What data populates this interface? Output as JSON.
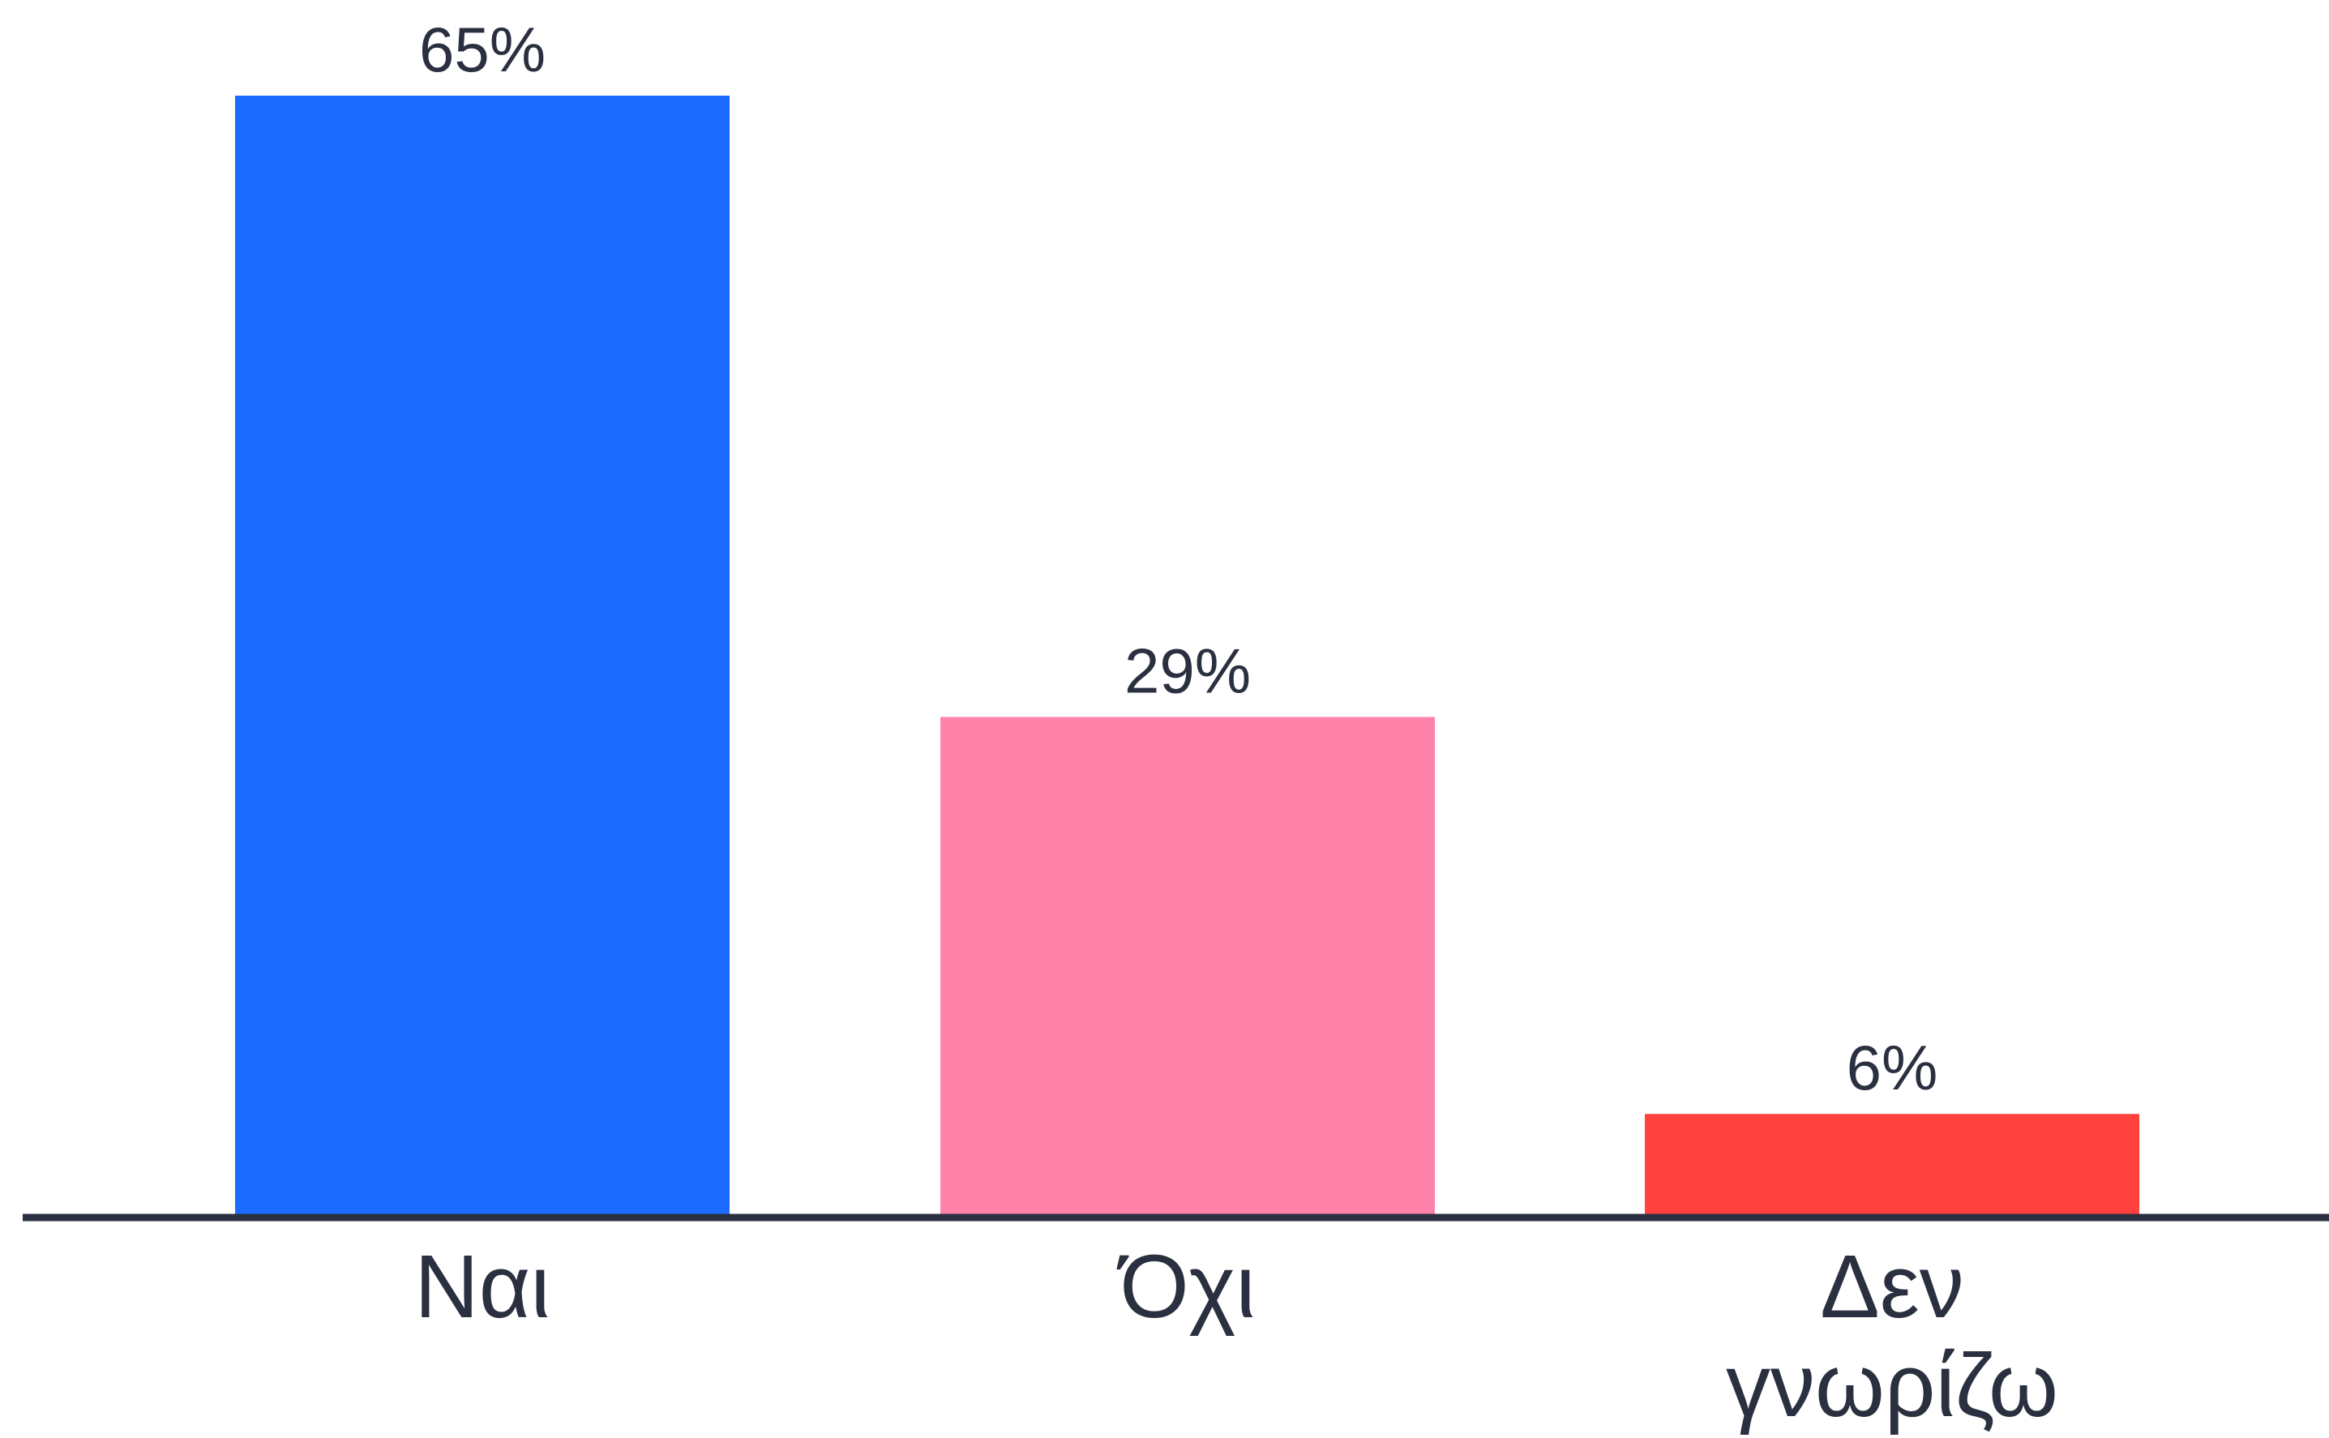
{
  "chart_data": {
    "type": "bar",
    "categories": [
      [
        "Ναι"
      ],
      [
        "Όχι"
      ],
      [
        "Δεν",
        "γνωρίζω"
      ]
    ],
    "values": [
      65,
      29,
      6
    ],
    "value_labels": [
      "65%",
      "29%",
      "6%"
    ],
    "colors": [
      "#1c6bff",
      "#ff82aa",
      "#ff423d"
    ],
    "axis_color": "#2b3040",
    "ylim": [
      0,
      65
    ],
    "grid": false,
    "legend": "none"
  }
}
